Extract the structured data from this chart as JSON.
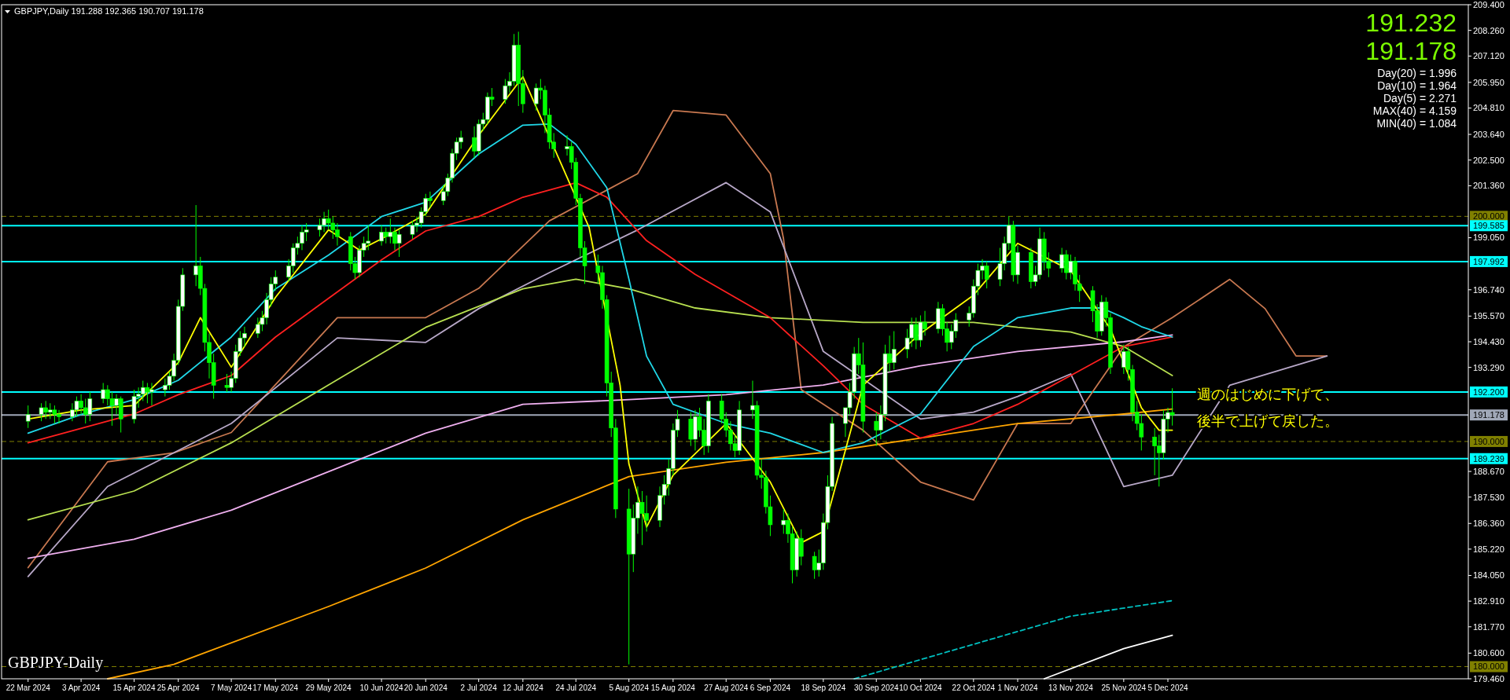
{
  "chart_data": {
    "type": "candlestick",
    "title": "GBPJPY,Daily  191.288 192.365 190.707 191.178",
    "annotations": [
      "GBPJPY-Daily",
      "191.232",
      "191.178",
      "Day(20) = 1.996",
      "Day(10) = 1.964",
      "Day(5) = 2.271",
      "MAX(40) = 4.159",
      "MIN(40) = 1.084",
      "週のはじめに下げて、",
      "後半で上げて戻した。"
    ],
    "xlim": [
      "2024-03-16",
      "2025-02-11"
    ],
    "xticks": [
      {
        "value": "2024-03-22",
        "label": "22 Mar 2024"
      },
      {
        "value": "2024-04-03",
        "label": "3 Apr 2024"
      },
      {
        "value": "2024-04-15",
        "label": "15 Apr 2024"
      },
      {
        "value": "2024-04-25",
        "label": "25 Apr 2024"
      },
      {
        "value": "2024-05-07",
        "label": "7 May 2024"
      },
      {
        "value": "2024-05-17",
        "label": "17 May 2024"
      },
      {
        "value": "2024-05-29",
        "label": "29 May 2024"
      },
      {
        "value": "2024-06-10",
        "label": "10 Jun 2024"
      },
      {
        "value": "2024-06-20",
        "label": "20 Jun 2024"
      },
      {
        "value": "2024-07-02",
        "label": "2 Jul 2024"
      },
      {
        "value": "2024-07-12",
        "label": "12 Jul 2024"
      },
      {
        "value": "2024-07-24",
        "label": "24 Jul 2024"
      },
      {
        "value": "2024-08-05",
        "label": "5 Aug 2024"
      },
      {
        "value": "2024-08-15",
        "label": "15 Aug 2024"
      },
      {
        "value": "2024-08-27",
        "label": "27 Aug 2024"
      },
      {
        "value": "2024-09-06",
        "label": "6 Sep 2024"
      },
      {
        "value": "2024-09-18",
        "label": "18 Sep 2024"
      },
      {
        "value": "2024-09-30",
        "label": "30 Sep 2024"
      },
      {
        "value": "2024-10-10",
        "label": "10 Oct 2024"
      },
      {
        "value": "2024-10-22",
        "label": "22 Oct 2024"
      },
      {
        "value": "2024-11-01",
        "label": "1 Nov 2024"
      },
      {
        "value": "2024-11-13",
        "label": "13 Nov 2024"
      },
      {
        "value": "2024-11-25",
        "label": "25 Nov 2024"
      },
      {
        "value": "2024-12-05",
        "label": "5 Dec 2024"
      }
    ],
    "ylim": [
      179.46,
      209.4
    ],
    "yticks": [
      {
        "value": 179.46,
        "label": "179.460"
      },
      {
        "value": 180.6,
        "label": "180.600"
      },
      {
        "value": 181.77,
        "label": "181.770"
      },
      {
        "value": 182.91,
        "label": "182.910"
      },
      {
        "value": 184.05,
        "label": "184.050"
      },
      {
        "value": 185.22,
        "label": "185.220"
      },
      {
        "value": 186.36,
        "label": "186.360"
      },
      {
        "value": 187.53,
        "label": "187.530"
      },
      {
        "value": 188.67,
        "label": "188.670"
      },
      {
        "value": 193.29,
        "label": "193.290"
      },
      {
        "value": 194.43,
        "label": "194.430"
      },
      {
        "value": 195.57,
        "label": "195.570"
      },
      {
        "value": 196.74,
        "label": "196.740"
      },
      {
        "value": 199.05,
        "label": "199.050"
      },
      {
        "value": 201.36,
        "label": "201.360"
      },
      {
        "value": 202.5,
        "label": "202.500"
      },
      {
        "value": 203.64,
        "label": "203.640"
      },
      {
        "value": 204.81,
        "label": "204.810"
      },
      {
        "value": 205.95,
        "label": "205.950"
      },
      {
        "value": 207.12,
        "label": "207.120"
      },
      {
        "value": 208.26,
        "label": "208.260"
      },
      {
        "value": 209.4,
        "label": "209.400"
      }
    ],
    "ref_lines": [
      {
        "axis": "y",
        "value": 200.0,
        "label": "200.000",
        "color": "#808000",
        "line_style": "dashed"
      },
      {
        "axis": "y",
        "value": 199.585,
        "label": "199.585",
        "color": "#00ffff",
        "line_style": "solid"
      },
      {
        "axis": "y",
        "value": 197.992,
        "label": "197.992",
        "color": "#00ffff",
        "line_style": "solid"
      },
      {
        "axis": "y",
        "value": 192.2,
        "label": "192.200",
        "color": "#00ffff",
        "line_style": "solid"
      },
      {
        "axis": "y",
        "value": 191.178,
        "label": "191.178",
        "color": "#a0a8b8",
        "line_style": "solid"
      },
      {
        "axis": "y",
        "value": 190.0,
        "label": "190.000",
        "color": "#808000",
        "line_style": "dashed"
      },
      {
        "axis": "y",
        "value": 189.239,
        "label": "189.239",
        "color": "#00ffff",
        "line_style": "solid"
      },
      {
        "axis": "y",
        "value": 180.0,
        "label": "180.000",
        "color": "#808000",
        "line_style": "dashed"
      }
    ],
    "grid": false,
    "series": [
      {
        "type": "line",
        "color": "#c87850",
        "x": [
          "2024-03-22",
          "2024-04-09",
          "2024-04-24",
          "2024-05-07",
          "2024-05-31",
          "2024-06-20",
          "2024-07-02",
          "2024-07-18",
          "2024-08-07",
          "2024-08-15",
          "2024-08-27",
          "2024-09-06",
          "2024-09-09",
          "2024-09-13",
          "2024-09-27",
          "2024-10-10",
          "2024-10-22",
          "2024-11-01",
          "2024-11-13",
          "2024-11-25",
          "2024-12-06",
          "2024-12-19",
          "2024-12-27",
          "2025-01-03",
          "2025-01-10"
        ],
        "values": [
          184.4,
          189.1,
          189.5,
          190.4,
          195.5,
          195.5,
          196.8,
          199.8,
          201.9,
          204.7,
          204.5,
          201.9,
          199.0,
          192.3,
          190.5,
          188.2,
          187.4,
          190.8,
          190.8,
          194.2,
          195.5,
          197.2,
          195.9,
          193.8,
          193.8
        ]
      },
      {
        "type": "line",
        "color": "#b8a8c8",
        "x": [
          "2024-03-22",
          "2024-04-09",
          "2024-05-07",
          "2024-05-31",
          "2024-06-20",
          "2024-07-02",
          "2024-07-18",
          "2024-08-07",
          "2024-08-27",
          "2024-09-06",
          "2024-09-18",
          "2024-10-10",
          "2024-10-22",
          "2024-11-01",
          "2024-11-13",
          "2024-11-25",
          "2024-12-06",
          "2024-12-19",
          "2025-01-10"
        ],
        "values": [
          184.0,
          188.0,
          190.8,
          194.6,
          194.4,
          195.9,
          197.5,
          199.4,
          201.5,
          200.2,
          194.0,
          191.0,
          191.3,
          192.0,
          193.0,
          188.0,
          188.5,
          192.5,
          193.8
        ]
      },
      {
        "type": "line",
        "color": "#ffa500",
        "x": [
          "2024-04-09",
          "2024-04-24",
          "2024-05-29",
          "2024-06-20",
          "2024-07-12",
          "2024-08-05",
          "2024-08-27",
          "2024-09-18",
          "2024-10-10",
          "2024-11-01",
          "2024-11-25",
          "2024-12-06"
        ],
        "values": [
          179.46,
          180.1,
          182.67,
          184.38,
          186.52,
          188.44,
          189.08,
          189.51,
          190.15,
          190.8,
          191.22,
          191.44
        ]
      },
      {
        "type": "line",
        "color": "#f0b0f0",
        "x": [
          "2024-03-22",
          "2024-04-15",
          "2024-05-07",
          "2024-05-29",
          "2024-06-20",
          "2024-07-12",
          "2024-08-05",
          "2024-08-27",
          "2024-09-18",
          "2024-10-10",
          "2024-11-01",
          "2024-11-25",
          "2024-12-06"
        ],
        "values": [
          184.81,
          185.66,
          186.95,
          188.66,
          190.37,
          191.65,
          191.86,
          192.08,
          192.51,
          193.36,
          194.0,
          194.43,
          194.73
        ]
      },
      {
        "type": "line",
        "color": "#b8e050",
        "x": [
          "2024-03-22",
          "2024-04-15",
          "2024-05-07",
          "2024-05-29",
          "2024-06-20",
          "2024-07-12",
          "2024-07-24",
          "2024-08-05",
          "2024-08-20",
          "2024-09-06",
          "2024-09-27",
          "2024-10-22",
          "2024-11-01",
          "2024-11-13",
          "2024-11-25",
          "2024-12-06"
        ],
        "values": [
          186.52,
          187.8,
          189.94,
          192.51,
          195.07,
          196.78,
          197.21,
          196.78,
          195.93,
          195.5,
          195.29,
          195.29,
          195.07,
          194.86,
          194.22,
          192.93
        ]
      },
      {
        "type": "line",
        "color": "#ff2020",
        "x": [
          "2024-03-22",
          "2024-04-15",
          "2024-04-25",
          "2024-05-07",
          "2024-05-17",
          "2024-05-29",
          "2024-06-10",
          "2024-06-20",
          "2024-07-02",
          "2024-07-12",
          "2024-07-24",
          "2024-07-31",
          "2024-08-09",
          "2024-08-20",
          "2024-09-06",
          "2024-09-18",
          "2024-09-27",
          "2024-10-10",
          "2024-10-22",
          "2024-11-01",
          "2024-11-13",
          "2024-11-25",
          "2024-12-06"
        ],
        "values": [
          189.94,
          191.22,
          192.08,
          192.93,
          194.64,
          196.36,
          198.07,
          199.35,
          199.99,
          200.85,
          201.49,
          200.85,
          198.92,
          197.42,
          195.5,
          193.36,
          191.65,
          190.15,
          190.8,
          191.65,
          192.93,
          194.22,
          194.64
        ]
      },
      {
        "type": "line",
        "color": "#20d8e8",
        "x": [
          "2024-03-22",
          "2024-04-03",
          "2024-04-15",
          "2024-04-25",
          "2024-05-07",
          "2024-05-17",
          "2024-05-29",
          "2024-06-10",
          "2024-06-20",
          "2024-07-02",
          "2024-07-12",
          "2024-07-18",
          "2024-07-24",
          "2024-07-31",
          "2024-08-05",
          "2024-08-09",
          "2024-08-15",
          "2024-08-27",
          "2024-09-06",
          "2024-09-18",
          "2024-09-27",
          "2024-10-10",
          "2024-10-22",
          "2024-11-01",
          "2024-11-13",
          "2024-11-20",
          "2024-11-25",
          "2024-11-29",
          "2024-12-06"
        ],
        "values": [
          190.37,
          191.2,
          191.86,
          192.72,
          194.64,
          196.78,
          198.28,
          199.99,
          200.63,
          202.77,
          204.05,
          204.1,
          203.2,
          201.27,
          197.21,
          193.79,
          191.65,
          190.8,
          190.37,
          189.51,
          189.94,
          191.22,
          194.22,
          195.5,
          195.93,
          195.93,
          195.5,
          195.1,
          194.64
        ]
      },
      {
        "type": "line",
        "color": "#ffffff",
        "x": [
          "2024-11-07",
          "2024-11-25",
          "2024-12-06"
        ],
        "values": [
          179.46,
          180.8,
          181.39
        ]
      },
      {
        "type": "line",
        "color": "#00c0c0",
        "line_style": "dashed",
        "x": [
          "2024-09-25",
          "2024-11-13",
          "2024-12-06"
        ],
        "values": [
          179.46,
          182.24,
          182.93
        ]
      },
      {
        "type": "candlestick",
        "color": "#00ff00",
        "x": [
          "2024-03-22",
          "2024-03-25",
          "2024-03-26",
          "2024-03-27",
          "2024-03-28",
          "2024-03-29",
          "2024-04-01",
          "2024-04-02",
          "2024-04-03",
          "2024-04-04",
          "2024-04-05",
          "2024-04-08",
          "2024-04-09",
          "2024-04-10",
          "2024-04-11",
          "2024-04-12",
          "2024-04-15",
          "2024-04-16",
          "2024-04-17",
          "2024-04-18",
          "2024-04-19",
          "2024-04-22",
          "2024-04-23",
          "2024-04-24",
          "2024-04-25",
          "2024-04-26",
          "2024-04-29",
          "2024-04-30",
          "2024-05-01",
          "2024-05-02",
          "2024-05-03",
          "2024-05-06",
          "2024-05-07",
          "2024-05-08",
          "2024-05-09",
          "2024-05-10",
          "2024-05-13",
          "2024-05-14",
          "2024-05-15",
          "2024-05-16",
          "2024-05-17",
          "2024-05-20",
          "2024-05-21",
          "2024-05-22",
          "2024-05-23",
          "2024-05-24",
          "2024-05-27",
          "2024-05-28",
          "2024-05-29",
          "2024-05-30",
          "2024-05-31",
          "2024-06-03",
          "2024-06-04",
          "2024-06-05",
          "2024-06-06",
          "2024-06-07",
          "2024-06-10",
          "2024-06-11",
          "2024-06-12",
          "2024-06-13",
          "2024-06-14",
          "2024-06-17",
          "2024-06-18",
          "2024-06-19",
          "2024-06-20",
          "2024-06-21",
          "2024-06-24",
          "2024-06-25",
          "2024-06-26",
          "2024-06-27",
          "2024-06-28",
          "2024-07-01",
          "2024-07-02",
          "2024-07-03",
          "2024-07-04",
          "2024-07-05",
          "2024-07-08",
          "2024-07-09",
          "2024-07-10",
          "2024-07-11",
          "2024-07-12",
          "2024-07-15",
          "2024-07-16",
          "2024-07-17",
          "2024-07-18",
          "2024-07-19",
          "2024-07-22",
          "2024-07-23",
          "2024-07-24",
          "2024-07-25",
          "2024-07-26",
          "2024-07-29",
          "2024-07-30",
          "2024-07-31",
          "2024-08-01",
          "2024-08-02",
          "2024-08-05",
          "2024-08-06",
          "2024-08-07",
          "2024-08-08",
          "2024-08-09",
          "2024-08-12",
          "2024-08-13",
          "2024-08-14",
          "2024-08-15",
          "2024-08-16",
          "2024-08-19",
          "2024-08-20",
          "2024-08-21",
          "2024-08-22",
          "2024-08-23",
          "2024-08-26",
          "2024-08-27",
          "2024-08-28",
          "2024-08-29",
          "2024-08-30",
          "2024-09-02",
          "2024-09-03",
          "2024-09-04",
          "2024-09-05",
          "2024-09-06",
          "2024-09-09",
          "2024-09-10",
          "2024-09-11",
          "2024-09-12",
          "2024-09-13",
          "2024-09-16",
          "2024-09-17",
          "2024-09-18",
          "2024-09-19",
          "2024-09-20",
          "2024-09-23",
          "2024-09-24",
          "2024-09-25",
          "2024-09-26",
          "2024-09-27",
          "2024-09-30",
          "2024-10-01",
          "2024-10-02",
          "2024-10-03",
          "2024-10-04",
          "2024-10-07",
          "2024-10-08",
          "2024-10-09",
          "2024-10-10",
          "2024-10-11",
          "2024-10-14",
          "2024-10-15",
          "2024-10-16",
          "2024-10-17",
          "2024-10-18",
          "2024-10-21",
          "2024-10-22",
          "2024-10-23",
          "2024-10-24",
          "2024-10-25",
          "2024-10-28",
          "2024-10-29",
          "2024-10-30",
          "2024-10-31",
          "2024-11-01",
          "2024-11-04",
          "2024-11-05",
          "2024-11-06",
          "2024-11-07",
          "2024-11-08",
          "2024-11-11",
          "2024-11-12",
          "2024-11-13",
          "2024-11-14",
          "2024-11-15",
          "2024-11-18",
          "2024-11-19",
          "2024-11-20",
          "2024-11-21",
          "2024-11-22",
          "2024-11-25",
          "2024-11-26",
          "2024-11-27",
          "2024-11-28",
          "2024-11-29",
          "2024-12-02",
          "2024-12-03",
          "2024-12-04",
          "2024-12-05",
          "2024-12-06"
        ],
        "ohlc": [
          [
            190.9,
            191.6,
            190.6,
            191.2
          ],
          [
            191.2,
            191.7,
            190.9,
            191.5
          ],
          [
            191.5,
            191.8,
            191.0,
            191.3
          ],
          [
            191.3,
            191.7,
            191.0,
            191.4
          ],
          [
            191.4,
            191.6,
            190.8,
            191.2
          ],
          [
            191.2,
            191.4,
            190.8,
            191.1
          ],
          [
            191.1,
            191.7,
            190.9,
            191.4
          ],
          [
            191.4,
            192.0,
            191.1,
            191.8
          ],
          [
            191.8,
            192.1,
            191.2,
            191.5
          ],
          [
            191.5,
            191.9,
            190.8,
            191.2
          ],
          [
            191.2,
            192.2,
            190.9,
            191.9
          ],
          [
            191.9,
            192.6,
            191.7,
            192.3
          ],
          [
            192.3,
            192.5,
            191.6,
            191.9
          ],
          [
            191.9,
            192.2,
            190.7,
            191.6
          ],
          [
            191.6,
            192.1,
            191.2,
            191.9
          ],
          [
            191.9,
            192.0,
            190.4,
            191.0
          ],
          [
            191.0,
            192.3,
            190.8,
            192.0
          ],
          [
            192.0,
            192.4,
            191.5,
            192.1
          ],
          [
            192.1,
            192.7,
            191.8,
            192.4
          ],
          [
            192.4,
            192.6,
            191.7,
            192.2
          ],
          [
            192.2,
            192.6,
            191.6,
            192.3
          ],
          [
            192.3,
            192.8,
            192.0,
            192.5
          ],
          [
            192.5,
            193.1,
            192.3,
            192.9
          ],
          [
            192.9,
            193.9,
            192.7,
            193.6
          ],
          [
            193.6,
            196.3,
            193.4,
            196.0
          ],
          [
            196.0,
            197.7,
            195.8,
            197.4
          ],
          [
            197.4,
            200.5,
            196.9,
            197.8
          ],
          [
            197.8,
            198.2,
            196.5,
            196.8
          ],
          [
            196.8,
            197.0,
            194.0,
            194.4
          ],
          [
            194.4,
            194.8,
            192.8,
            193.5
          ],
          [
            193.5,
            193.9,
            191.9,
            192.5
          ],
          [
            192.5,
            193.0,
            192.2,
            192.4
          ],
          [
            192.4,
            193.1,
            192.2,
            192.8
          ],
          [
            192.8,
            194.3,
            192.6,
            194.0
          ],
          [
            194.0,
            194.9,
            193.8,
            194.6
          ],
          [
            194.6,
            195.1,
            194.2,
            194.8
          ],
          [
            194.8,
            195.5,
            194.6,
            195.2
          ],
          [
            195.2,
            195.8,
            194.9,
            195.5
          ],
          [
            195.5,
            196.6,
            195.2,
            196.3
          ],
          [
            196.3,
            197.3,
            196.0,
            197.0
          ],
          [
            197.0,
            197.6,
            196.7,
            197.3
          ],
          [
            197.3,
            198.1,
            197.1,
            197.8
          ],
          [
            197.8,
            198.8,
            197.5,
            198.6
          ],
          [
            198.6,
            199.1,
            198.3,
            198.8
          ],
          [
            198.8,
            199.6,
            198.5,
            199.3
          ],
          [
            199.3,
            199.7,
            198.9,
            199.4
          ],
          [
            199.4,
            199.9,
            199.1,
            199.6
          ],
          [
            199.6,
            200.2,
            199.3,
            199.9
          ],
          [
            199.9,
            200.3,
            199.4,
            199.7
          ],
          [
            199.7,
            200.0,
            199.0,
            199.4
          ],
          [
            199.4,
            199.7,
            198.7,
            199.1
          ],
          [
            199.1,
            199.3,
            197.6,
            197.9
          ],
          [
            197.9,
            198.2,
            197.2,
            197.5
          ],
          [
            197.5,
            198.7,
            197.3,
            198.5
          ],
          [
            198.5,
            199.1,
            198.2,
            198.8
          ],
          [
            198.8,
            199.6,
            198.5,
            198.9
          ],
          [
            198.9,
            199.6,
            198.7,
            199.3
          ],
          [
            199.3,
            199.5,
            198.8,
            199.1
          ],
          [
            199.1,
            199.9,
            198.8,
            199.3
          ],
          [
            199.3,
            199.5,
            198.5,
            198.8
          ],
          [
            198.8,
            199.4,
            198.2,
            199.2
          ],
          [
            199.2,
            199.8,
            199.0,
            199.6
          ],
          [
            199.6,
            200.0,
            199.3,
            199.7
          ],
          [
            199.7,
            200.4,
            199.5,
            200.2
          ],
          [
            200.2,
            201.0,
            200.0,
            200.8
          ],
          [
            200.8,
            201.1,
            200.4,
            200.7
          ],
          [
            200.7,
            201.4,
            200.5,
            201.1
          ],
          [
            201.1,
            201.9,
            200.9,
            201.7
          ],
          [
            201.7,
            203.0,
            201.5,
            202.8
          ],
          [
            202.8,
            203.5,
            202.5,
            203.3
          ],
          [
            203.3,
            203.8,
            203.0,
            203.5
          ],
          [
            203.5,
            204.0,
            202.6,
            202.9
          ],
          [
            202.9,
            204.3,
            202.7,
            204.1
          ],
          [
            204.1,
            204.6,
            203.8,
            204.3
          ],
          [
            204.3,
            205.5,
            204.1,
            205.3
          ],
          [
            205.3,
            205.7,
            204.9,
            205.2
          ],
          [
            205.2,
            206.1,
            205.0,
            205.8
          ],
          [
            205.8,
            206.4,
            205.5,
            206.0
          ],
          [
            206.0,
            208.1,
            205.8,
            207.6
          ],
          [
            207.6,
            208.2,
            204.9,
            205.9
          ],
          [
            205.9,
            206.5,
            204.6,
            205.0
          ],
          [
            205.0,
            205.9,
            204.7,
            205.7
          ],
          [
            205.7,
            206.1,
            205.2,
            205.6
          ],
          [
            205.6,
            205.8,
            203.7,
            204.5
          ],
          [
            204.5,
            204.8,
            203.0,
            203.3
          ],
          [
            203.3,
            203.7,
            202.6,
            203.0
          ],
          [
            203.0,
            203.6,
            202.7,
            203.1
          ],
          [
            203.1,
            203.3,
            202.1,
            202.4
          ],
          [
            202.4,
            202.6,
            200.5,
            200.8
          ],
          [
            200.8,
            201.0,
            198.2,
            198.6
          ],
          [
            198.6,
            198.9,
            197.0,
            197.8
          ],
          [
            197.8,
            198.3,
            197.0,
            197.5
          ],
          [
            197.5,
            197.8,
            195.9,
            196.3
          ],
          [
            196.3,
            196.5,
            192.0,
            192.6
          ],
          [
            192.6,
            193.1,
            190.2,
            190.6
          ],
          [
            190.6,
            191.0,
            186.6,
            187.0
          ],
          [
            187.0,
            187.9,
            180.1,
            185.0
          ],
          [
            185.0,
            187.2,
            184.2,
            186.6
          ],
          [
            186.6,
            188.0,
            185.9,
            187.3
          ],
          [
            187.3,
            187.8,
            185.4,
            186.8
          ],
          [
            186.8,
            187.6,
            186.0,
            186.5
          ],
          [
            186.5,
            188.0,
            186.2,
            187.6
          ],
          [
            187.6,
            188.5,
            187.2,
            188.1
          ],
          [
            188.1,
            189.2,
            187.6,
            188.8
          ],
          [
            188.8,
            190.8,
            188.5,
            190.5
          ],
          [
            190.5,
            191.4,
            190.2,
            191.0
          ],
          [
            191.0,
            191.3,
            189.8,
            190.1
          ],
          [
            190.1,
            191.4,
            189.6,
            191.1
          ],
          [
            191.1,
            191.5,
            190.2,
            190.5
          ],
          [
            190.5,
            191.0,
            189.4,
            189.8
          ],
          [
            189.8,
            192.1,
            189.5,
            191.8
          ],
          [
            191.8,
            192.1,
            190.8,
            191.0
          ],
          [
            191.0,
            191.3,
            190.2,
            190.5
          ],
          [
            190.5,
            190.9,
            189.6,
            189.9
          ],
          [
            189.9,
            190.3,
            189.3,
            189.6
          ],
          [
            189.6,
            191.8,
            189.4,
            191.4
          ],
          [
            191.4,
            192.7,
            191.0,
            191.6
          ],
          [
            191.6,
            191.8,
            188.3,
            188.5
          ],
          [
            188.5,
            189.2,
            187.9,
            188.4
          ],
          [
            188.4,
            188.7,
            186.8,
            187.1
          ],
          [
            187.1,
            187.6,
            185.8,
            186.3
          ],
          [
            186.3,
            187.0,
            185.9,
            186.5
          ],
          [
            186.5,
            186.8,
            185.5,
            185.9
          ],
          [
            185.9,
            186.2,
            183.7,
            184.3
          ],
          [
            184.3,
            186.0,
            184.0,
            185.7
          ],
          [
            185.7,
            186.1,
            184.5,
            184.9
          ],
          [
            184.9,
            185.1,
            183.9,
            184.3
          ],
          [
            184.3,
            185.2,
            184.0,
            184.6
          ],
          [
            184.6,
            186.8,
            184.3,
            186.4
          ],
          [
            186.4,
            188.5,
            186.1,
            188.0
          ],
          [
            188.0,
            191.1,
            187.8,
            190.8
          ],
          [
            190.8,
            191.5,
            190.2,
            191.5
          ],
          [
            191.5,
            192.6,
            191.2,
            192.2
          ],
          [
            192.2,
            194.2,
            191.9,
            193.9
          ],
          [
            193.9,
            194.6,
            193.0,
            193.4
          ],
          [
            193.4,
            194.4,
            190.4,
            190.9
          ],
          [
            190.9,
            191.3,
            189.8,
            190.5
          ],
          [
            190.5,
            191.6,
            190.1,
            191.2
          ],
          [
            191.2,
            194.3,
            190.9,
            193.9
          ],
          [
            193.9,
            194.7,
            193.1,
            193.5
          ],
          [
            193.5,
            194.9,
            193.2,
            194.1
          ],
          [
            194.1,
            195.0,
            193.7,
            194.6
          ],
          [
            194.6,
            195.5,
            194.2,
            195.2
          ],
          [
            195.2,
            195.5,
            194.1,
            194.5
          ],
          [
            194.5,
            195.6,
            194.2,
            195.3
          ],
          [
            195.3,
            195.8,
            194.7,
            195.0
          ],
          [
            195.0,
            196.2,
            194.8,
            195.9
          ],
          [
            195.9,
            196.1,
            194.7,
            195.0
          ],
          [
            195.0,
            195.3,
            194.0,
            194.4
          ],
          [
            194.4,
            195.2,
            194.1,
            194.9
          ],
          [
            194.9,
            195.7,
            194.6,
            195.4
          ],
          [
            195.4,
            196.0,
            195.1,
            195.7
          ],
          [
            195.7,
            197.2,
            195.5,
            196.9
          ],
          [
            196.9,
            197.9,
            196.5,
            197.6
          ],
          [
            197.6,
            198.1,
            197.2,
            197.8
          ],
          [
            197.8,
            198.0,
            196.8,
            197.2
          ],
          [
            197.2,
            198.6,
            196.9,
            197.9
          ],
          [
            197.9,
            199.1,
            197.6,
            198.8
          ],
          [
            198.8,
            200.0,
            198.5,
            199.6
          ],
          [
            199.6,
            199.8,
            197.1,
            197.4
          ],
          [
            197.4,
            198.7,
            197.0,
            198.4
          ],
          [
            198.4,
            198.6,
            196.8,
            197.1
          ],
          [
            197.1,
            197.8,
            196.9,
            197.4
          ],
          [
            197.4,
            199.5,
            197.2,
            199.0
          ],
          [
            199.0,
            199.3,
            197.6,
            198.0
          ],
          [
            198.0,
            198.4,
            197.3,
            197.7
          ],
          [
            197.7,
            198.6,
            197.5,
            198.3
          ],
          [
            198.3,
            198.5,
            197.2,
            197.5
          ],
          [
            197.5,
            198.3,
            197.2,
            198.0
          ],
          [
            198.0,
            198.2,
            196.7,
            197.0
          ],
          [
            197.0,
            197.4,
            196.2,
            196.7
          ],
          [
            196.7,
            196.9,
            195.3,
            195.8
          ],
          [
            195.8,
            196.1,
            194.6,
            194.9
          ],
          [
            194.9,
            196.5,
            194.7,
            196.2
          ],
          [
            196.2,
            196.4,
            195.1,
            195.5
          ],
          [
            195.5,
            195.7,
            193.0,
            193.3
          ],
          [
            193.3,
            194.3,
            193.0,
            194.0
          ],
          [
            194.0,
            194.2,
            192.7,
            193.2
          ],
          [
            193.2,
            193.4,
            190.9,
            191.3
          ],
          [
            191.3,
            191.8,
            190.5,
            190.8
          ],
          [
            190.8,
            191.2,
            189.6,
            190.2
          ],
          [
            190.2,
            190.6,
            188.5,
            189.8
          ],
          [
            189.8,
            190.3,
            188.0,
            189.5
          ],
          [
            189.5,
            191.4,
            189.2,
            191.0
          ],
          [
            191.0,
            191.5,
            190.4,
            191.288
          ],
          [
            191.288,
            192.365,
            190.707,
            191.178
          ]
        ]
      },
      {
        "type": "line",
        "color": "#ffff00",
        "x": [
          "2024-03-22",
          "2024-04-03",
          "2024-04-15",
          "2024-04-25",
          "2024-04-30",
          "2024-05-07",
          "2024-05-17",
          "2024-05-29",
          "2024-06-05",
          "2024-06-10",
          "2024-06-20",
          "2024-07-02",
          "2024-07-12",
          "2024-07-27",
          "2024-08-03",
          "2024-08-05",
          "2024-08-09",
          "2024-08-15",
          "2024-08-27",
          "2024-09-06",
          "2024-09-13",
          "2024-09-18",
          "2024-09-27",
          "2024-10-10",
          "2024-10-22",
          "2024-11-01",
          "2024-11-13",
          "2024-11-22",
          "2024-11-29",
          "2024-12-03",
          "2024-12-06"
        ],
        "values": [
          191.0,
          191.4,
          191.6,
          193.5,
          195.5,
          193.3,
          196.4,
          199.4,
          198.5,
          199.0,
          200.1,
          203.6,
          206.2,
          199.5,
          192.5,
          189.0,
          186.2,
          188.5,
          190.8,
          188.2,
          185.5,
          186.0,
          192.5,
          194.8,
          196.5,
          198.8,
          197.6,
          195.0,
          191.5,
          190.5,
          190.5
        ]
      }
    ]
  }
}
